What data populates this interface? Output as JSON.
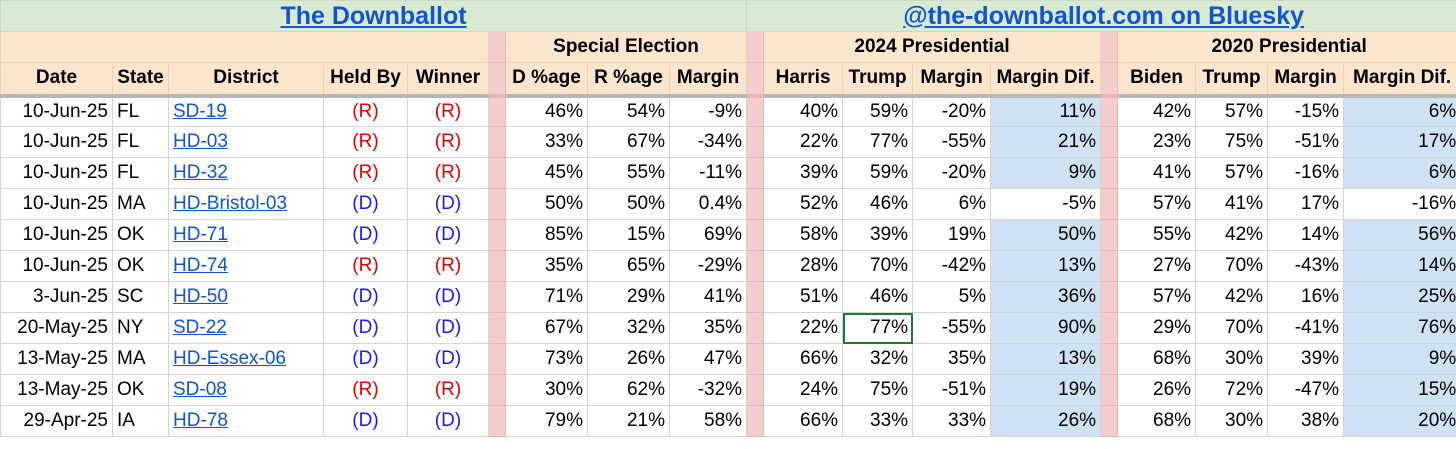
{
  "titles": {
    "left": "The Downballot",
    "right": "@the-downballot.com on Bluesky"
  },
  "groups": {
    "special": "Special Election",
    "pres2024": "2024 Presidential",
    "pres2020": "2020 Presidential"
  },
  "headers": {
    "date": "Date",
    "state": "State",
    "district": "District",
    "held_by": "Held By",
    "winner": "Winner",
    "d_pct": "D %age",
    "r_pct": "R %age",
    "margin": "Margin",
    "harris": "Harris",
    "trump24": "Trump",
    "margin24": "Margin",
    "margin_dif24": "Margin Dif.",
    "biden": "Biden",
    "trump20": "Trump",
    "margin20": "Margin",
    "margin_dif20": "Margin Dif."
  },
  "colors": {
    "rep": "#e00000",
    "dem": "#1a1aff",
    "highlight_blue": "#cfe2f3",
    "header_bg": "#fce5cd",
    "title_bg": "#d9ead3",
    "separator": "#f4cccc"
  },
  "rows": [
    {
      "date": "10-Jun-25",
      "state": "FL",
      "district": "SD-19",
      "held_by": "(R)",
      "winner": "(R)",
      "d": "46%",
      "r": "54%",
      "margin": "-9%",
      "harris": "40%",
      "trump24": "59%",
      "m24": "-20%",
      "dif24": "11%",
      "biden": "42%",
      "trump20": "57%",
      "m20": "-15%",
      "dif20": "6%",
      "dif24_hl": true,
      "dif20_hl": true
    },
    {
      "date": "10-Jun-25",
      "state": "FL",
      "district": "HD-03",
      "held_by": "(R)",
      "winner": "(R)",
      "d": "33%",
      "r": "67%",
      "margin": "-34%",
      "harris": "22%",
      "trump24": "77%",
      "m24": "-55%",
      "dif24": "21%",
      "biden": "23%",
      "trump20": "75%",
      "m20": "-51%",
      "dif20": "17%",
      "dif24_hl": true,
      "dif20_hl": true
    },
    {
      "date": "10-Jun-25",
      "state": "FL",
      "district": "HD-32",
      "held_by": "(R)",
      "winner": "(R)",
      "d": "45%",
      "r": "55%",
      "margin": "-11%",
      "harris": "39%",
      "trump24": "59%",
      "m24": "-20%",
      "dif24": "9%",
      "biden": "41%",
      "trump20": "57%",
      "m20": "-16%",
      "dif20": "6%",
      "dif24_hl": true,
      "dif20_hl": true
    },
    {
      "date": "10-Jun-25",
      "state": "MA",
      "district": "HD-Bristol-03",
      "held_by": "(D)",
      "winner": "(D)",
      "d": "50%",
      "r": "50%",
      "margin": "0.4%",
      "harris": "52%",
      "trump24": "46%",
      "m24": "6%",
      "dif24": "-5%",
      "biden": "57%",
      "trump20": "41%",
      "m20": "17%",
      "dif20": "-16%",
      "dif24_hl": false,
      "dif20_hl": false
    },
    {
      "date": "10-Jun-25",
      "state": "OK",
      "district": "HD-71",
      "held_by": "(D)",
      "winner": "(D)",
      "d": "85%",
      "r": "15%",
      "margin": "69%",
      "harris": "58%",
      "trump24": "39%",
      "m24": "19%",
      "dif24": "50%",
      "biden": "55%",
      "trump20": "42%",
      "m20": "14%",
      "dif20": "56%",
      "dif24_hl": true,
      "dif20_hl": true
    },
    {
      "date": "10-Jun-25",
      "state": "OK",
      "district": "HD-74",
      "held_by": "(R)",
      "winner": "(R)",
      "d": "35%",
      "r": "65%",
      "margin": "-29%",
      "harris": "28%",
      "trump24": "70%",
      "m24": "-42%",
      "dif24": "13%",
      "biden": "27%",
      "trump20": "70%",
      "m20": "-43%",
      "dif20": "14%",
      "dif24_hl": true,
      "dif20_hl": true
    },
    {
      "date": "3-Jun-25",
      "state": "SC",
      "district": "HD-50",
      "held_by": "(D)",
      "winner": "(D)",
      "d": "71%",
      "r": "29%",
      "margin": "41%",
      "harris": "51%",
      "trump24": "46%",
      "m24": "5%",
      "dif24": "36%",
      "biden": "57%",
      "trump20": "42%",
      "m20": "16%",
      "dif20": "25%",
      "dif24_hl": true,
      "dif20_hl": true
    },
    {
      "date": "20-May-25",
      "state": "NY",
      "district": "SD-22",
      "held_by": "(D)",
      "winner": "(D)",
      "d": "67%",
      "r": "32%",
      "margin": "35%",
      "harris": "22%",
      "trump24": "77%",
      "m24": "-55%",
      "dif24": "90%",
      "biden": "29%",
      "trump20": "70%",
      "m20": "-41%",
      "dif20": "76%",
      "dif24_hl": true,
      "dif20_hl": true,
      "selected_trump24": true
    },
    {
      "date": "13-May-25",
      "state": "MA",
      "district": "HD-Essex-06",
      "held_by": "(D)",
      "winner": "(D)",
      "d": "73%",
      "r": "26%",
      "margin": "47%",
      "harris": "66%",
      "trump24": "32%",
      "m24": "35%",
      "dif24": "13%",
      "biden": "68%",
      "trump20": "30%",
      "m20": "39%",
      "dif20": "9%",
      "dif24_hl": true,
      "dif20_hl": true
    },
    {
      "date": "13-May-25",
      "state": "OK",
      "district": "SD-08",
      "held_by": "(R)",
      "winner": "(R)",
      "d": "30%",
      "r": "62%",
      "margin": "-32%",
      "harris": "24%",
      "trump24": "75%",
      "m24": "-51%",
      "dif24": "19%",
      "biden": "26%",
      "trump20": "72%",
      "m20": "-47%",
      "dif20": "15%",
      "dif24_hl": true,
      "dif20_hl": true
    },
    {
      "date": "29-Apr-25",
      "state": "IA",
      "district": "HD-78",
      "held_by": "(D)",
      "winner": "(D)",
      "d": "79%",
      "r": "21%",
      "margin": "58%",
      "harris": "66%",
      "trump24": "33%",
      "m24": "33%",
      "dif24": "26%",
      "biden": "68%",
      "trump20": "30%",
      "m20": "38%",
      "dif20": "20%",
      "dif24_hl": true,
      "dif20_hl": true
    }
  ]
}
